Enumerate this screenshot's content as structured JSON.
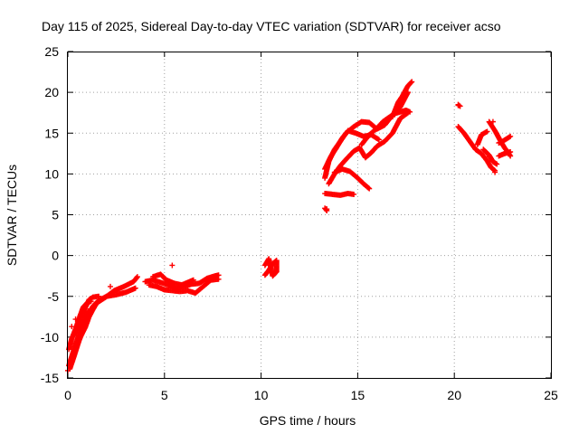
{
  "chart_data": {
    "type": "scatter",
    "title": "Day 115 of 2025, Sidereal Day-to-day VTEC variation (SDTVAR) for receiver acso",
    "xlabel": "GPS time / hours",
    "ylabel": "SDTVAR / TECUs",
    "xlim": [
      0,
      25
    ],
    "ylim": [
      -15,
      25
    ],
    "xticks": [
      0,
      5,
      10,
      15,
      20,
      25
    ],
    "yticks": [
      -15,
      -10,
      -5,
      0,
      5,
      10,
      15,
      20,
      25
    ],
    "grid": true,
    "marker": "+",
    "color": "#ff0000",
    "series": [
      {
        "name": "tracks",
        "segments": [
          [
            [
              0.1,
              -13.9
            ],
            [
              0.3,
              -12.5
            ],
            [
              0.5,
              -11
            ],
            [
              0.7,
              -9.5
            ],
            [
              0.9,
              -8.2
            ],
            [
              1.1,
              -7
            ],
            [
              1.3,
              -6.2
            ],
            [
              1.6,
              -5.5
            ],
            [
              2.0,
              -5.0
            ],
            [
              2.5,
              -4.8
            ],
            [
              3.0,
              -4.5
            ],
            [
              3.5,
              -4.0
            ]
          ],
          [
            [
              0.15,
              -13.0
            ],
            [
              0.4,
              -11.5
            ],
            [
              0.65,
              -10
            ],
            [
              0.9,
              -8.8
            ],
            [
              1.1,
              -7.5
            ],
            [
              1.3,
              -6.6
            ],
            [
              1.5,
              -5.8
            ],
            [
              1.9,
              -5.2
            ],
            [
              2.4,
              -4.3
            ],
            [
              2.9,
              -3.8
            ],
            [
              3.4,
              -3.2
            ],
            [
              3.6,
              -2.6
            ]
          ],
          [
            [
              0.05,
              -11.5
            ],
            [
              0.2,
              -10.2
            ],
            [
              0.4,
              -9.0
            ],
            [
              0.6,
              -7.6
            ],
            [
              0.8,
              -6.3
            ],
            [
              1.0,
              -5.8
            ],
            [
              1.2,
              -5.6
            ]
          ],
          [
            [
              0.3,
              -9.8
            ],
            [
              0.5,
              -8.8
            ],
            [
              0.7,
              -7.4
            ],
            [
              0.9,
              -6.4
            ],
            [
              1.1,
              -5.4
            ],
            [
              1.3,
              -5.1
            ],
            [
              1.6,
              -5.0
            ]
          ],
          [
            [
              0.05,
              -13.5
            ],
            [
              0.25,
              -12.0
            ],
            [
              0.45,
              -10.5
            ],
            [
              0.65,
              -9.2
            ],
            [
              0.85,
              -7.9
            ],
            [
              1.05,
              -6.8
            ]
          ],
          [
            [
              4.0,
              -3.2
            ],
            [
              4.4,
              -3.0
            ],
            [
              4.8,
              -3.3
            ],
            [
              5.2,
              -3.6
            ],
            [
              5.6,
              -4.0
            ],
            [
              6.0,
              -3.8
            ],
            [
              6.4,
              -3.5
            ],
            [
              6.8,
              -3.4
            ],
            [
              7.2,
              -2.8
            ],
            [
              7.6,
              -2.5
            ],
            [
              7.8,
              -2.4
            ]
          ],
          [
            [
              4.2,
              -3.6
            ],
            [
              4.6,
              -3.8
            ],
            [
              5.0,
              -4.2
            ],
            [
              5.4,
              -4.3
            ],
            [
              5.8,
              -4.4
            ],
            [
              6.2,
              -4.3
            ],
            [
              6.6,
              -4.6
            ],
            [
              7.0,
              -3.8
            ],
            [
              7.4,
              -3.0
            ],
            [
              7.8,
              -2.9
            ]
          ],
          [
            [
              4.4,
              -2.6
            ],
            [
              4.8,
              -2.3
            ],
            [
              5.1,
              -3.0
            ],
            [
              5.5,
              -3.4
            ],
            [
              5.9,
              -3.6
            ],
            [
              6.5,
              -3.0
            ]
          ],
          [
            [
              10.2,
              -2.4
            ],
            [
              10.4,
              -1.8
            ],
            [
              10.6,
              -1.0
            ],
            [
              10.8,
              -0.6
            ],
            [
              10.8,
              -2.0
            ],
            [
              10.6,
              -2.5
            ],
            [
              10.4,
              -0.4
            ],
            [
              10.2,
              -1.2
            ]
          ],
          [
            [
              13.3,
              9.5
            ],
            [
              13.5,
              11.5
            ],
            [
              13.8,
              13.0
            ],
            [
              14.1,
              14.0
            ],
            [
              14.4,
              15.0
            ],
            [
              14.8,
              15.8
            ],
            [
              15.2,
              16.4
            ],
            [
              15.6,
              16.3
            ],
            [
              16.0,
              15.5
            ],
            [
              16.4,
              16.0
            ],
            [
              16.8,
              17.2
            ],
            [
              17.2,
              18.2
            ],
            [
              17.6,
              20.0
            ]
          ],
          [
            [
              13.3,
              10.6
            ],
            [
              13.6,
              12.1
            ],
            [
              13.9,
              13.2
            ],
            [
              14.2,
              14.4
            ],
            [
              14.5,
              15.3
            ],
            [
              14.9,
              15.0
            ],
            [
              15.3,
              14.6
            ],
            [
              15.7,
              14.8
            ],
            [
              16.1,
              14.2
            ]
          ],
          [
            [
              13.5,
              8.8
            ],
            [
              13.8,
              10.0
            ],
            [
              14.1,
              11.0
            ],
            [
              14.4,
              11.8
            ],
            [
              14.8,
              12.8
            ],
            [
              15.1,
              13.2
            ],
            [
              15.4,
              12.0
            ],
            [
              15.7,
              12.6
            ],
            [
              16.0,
              13.4
            ],
            [
              16.4,
              14.0
            ],
            [
              16.8,
              15.0
            ],
            [
              17.2,
              16.8
            ],
            [
              17.6,
              17.5
            ]
          ],
          [
            [
              13.8,
              10.2
            ],
            [
              14.2,
              10.6
            ],
            [
              14.6,
              10.3
            ],
            [
              15.0,
              9.5
            ],
            [
              15.3,
              8.8
            ],
            [
              15.6,
              8.2
            ]
          ],
          [
            [
              13.3,
              7.6
            ],
            [
              13.7,
              7.5
            ],
            [
              14.1,
              7.4
            ],
            [
              14.5,
              7.6
            ],
            [
              14.8,
              7.5
            ]
          ],
          [
            [
              13.3,
              5.8
            ],
            [
              13.4,
              5.5
            ]
          ],
          [
            [
              16.8,
              17.0
            ],
            [
              17.1,
              18.8
            ],
            [
              17.3,
              19.5
            ],
            [
              17.6,
              20.8
            ],
            [
              17.8,
              21.3
            ]
          ],
          [
            [
              15.2,
              13.6
            ],
            [
              15.6,
              14.8
            ],
            [
              16.0,
              15.6
            ],
            [
              16.3,
              16.4
            ],
            [
              16.6,
              16.9
            ],
            [
              16.9,
              17.4
            ],
            [
              17.2,
              17.6
            ],
            [
              17.5,
              17.8
            ],
            [
              17.7,
              17.6
            ]
          ],
          [
            [
              20.2,
              18.5
            ],
            [
              20.3,
              18.3
            ]
          ],
          [
            [
              20.2,
              15.8
            ],
            [
              20.5,
              15.0
            ],
            [
              20.8,
              14.0
            ],
            [
              21.1,
              13.0
            ],
            [
              21.4,
              12.5
            ],
            [
              21.7,
              11.6
            ],
            [
              21.9,
              10.8
            ],
            [
              22.1,
              10.4
            ]
          ],
          [
            [
              21.2,
              13.6
            ],
            [
              21.4,
              14.8
            ],
            [
              21.7,
              15.2
            ]
          ],
          [
            [
              21.5,
              13.0
            ],
            [
              21.8,
              12.3
            ],
            [
              22.0,
              11.5
            ],
            [
              22.2,
              11.2
            ]
          ],
          [
            [
              21.8,
              16.4
            ],
            [
              22.1,
              15.3
            ],
            [
              22.4,
              14.0
            ],
            [
              22.6,
              13.2
            ],
            [
              22.8,
              12.6
            ],
            [
              22.9,
              12.2
            ]
          ],
          [
            [
              22.3,
              13.8
            ],
            [
              22.5,
              14.0
            ],
            [
              22.7,
              14.3
            ],
            [
              22.9,
              14.6
            ]
          ],
          [
            [
              22.3,
              12.2
            ],
            [
              22.6,
              12.5
            ],
            [
              22.9,
              12.7
            ]
          ]
        ]
      },
      {
        "name": "outliers",
        "points": [
          [
            0.2,
            -8.7
          ],
          [
            0.4,
            -7.8
          ],
          [
            2.2,
            -3.8
          ],
          [
            5.4,
            -1.2
          ],
          [
            22.0,
            16.4
          ],
          [
            22.1,
            10.2
          ],
          [
            21.8,
            12.1
          ],
          [
            20.2,
            18.4
          ],
          [
            13.4,
            5.7
          ],
          [
            0.0,
            -14.1
          ]
        ]
      }
    ]
  }
}
